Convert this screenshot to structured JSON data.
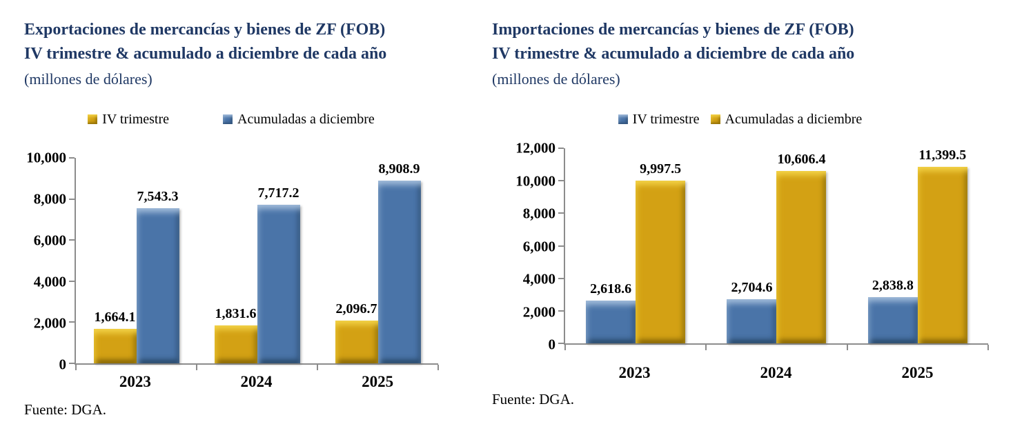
{
  "colors": {
    "gold": "#D3A114",
    "blue": "#4A74A8",
    "title_navy": "#1F3864",
    "axis_gray": "#8C8C8C",
    "text": "#000000"
  },
  "chart_data": [
    {
      "type": "bar",
      "title_line1": "Exportaciones de mercancías y bienes de ZF (FOB)",
      "title_line2": "IV trimestre & acumulado a diciembre de cada año",
      "subtitle": "(millones de dólares)",
      "source": "Fuente: DGA.",
      "categories": [
        "2023",
        "2024",
        "2025"
      ],
      "series": [
        {
          "name": "IV trimestre",
          "color_key": "gold",
          "values": [
            1664.1,
            1831.6,
            2096.7
          ],
          "value_labels": [
            "1,664.1",
            "1,831.6",
            "2,096.7"
          ]
        },
        {
          "name": "Acumuladas a diciembre",
          "color_key": "blue",
          "values": [
            7543.3,
            7717.2,
            8908.9
          ],
          "value_labels": [
            "7,543.3",
            "7,717.2",
            "8,908.9"
          ]
        }
      ],
      "xlabel": "",
      "ylabel": "",
      "ylim": [
        0,
        10000
      ],
      "ytick_values": [
        0,
        2000,
        4000,
        6000,
        8000,
        10000
      ],
      "ytick_labels": [
        "0",
        "2,000",
        "4,000",
        "6,000",
        "8,000",
        "10,000"
      ],
      "legend_position": "top",
      "grid": false
    },
    {
      "type": "bar",
      "title_line1": "Importaciones de mercancías y bienes de ZF (FOB)",
      "title_line2": "IV trimestre & acumulado a diciembre de cada año",
      "subtitle": "(millones de dólares)",
      "source": "Fuente: DGA.",
      "categories": [
        "2023",
        "2024",
        "2025"
      ],
      "series": [
        {
          "name": "IV trimestre",
          "color_key": "blue",
          "values": [
            2618.6,
            2704.6,
            2838.8
          ],
          "value_labels": [
            "2,618.6",
            "2,704.6",
            "2,838.8"
          ]
        },
        {
          "name": "Acumuladas a diciembre",
          "color_key": "gold",
          "values": [
            9997.5,
            10606.4,
            11399.5
          ],
          "value_labels": [
            "9,997.5",
            "10,606.4",
            "11,399.5"
          ]
        }
      ],
      "xlabel": "",
      "ylabel": "",
      "ylim": [
        0,
        12000
      ],
      "ytick_values": [
        0,
        2000,
        4000,
        6000,
        8000,
        10000,
        12000
      ],
      "ytick_labels": [
        "0",
        "2,000",
        "4,000",
        "6,000",
        "8,000",
        "10,000",
        "12,000"
      ],
      "legend_position": "top",
      "grid": false
    }
  ]
}
